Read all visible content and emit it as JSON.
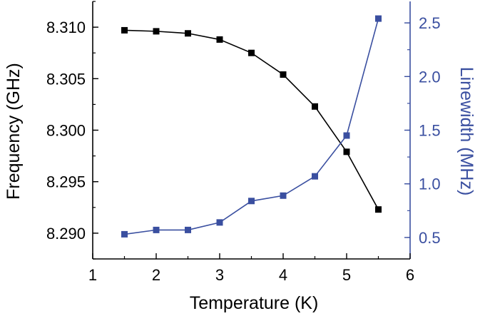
{
  "chart_data": {
    "type": "line",
    "xlabel": "Temperature (K)",
    "ylabel_left": "Frequency (GHz)",
    "ylabel_right": "Linewidth (MHz)",
    "xlim": [
      1,
      6
    ],
    "ylim_left": [
      8.2875,
      8.3125
    ],
    "ylim_right": [
      0.3,
      2.7
    ],
    "x_ticks": [
      "1",
      "2",
      "3",
      "4",
      "5",
      "6"
    ],
    "y_left_ticks": [
      "8.290",
      "8.295",
      "8.300",
      "8.305",
      "8.310"
    ],
    "y_right_ticks": [
      "0.5",
      "1.0",
      "1.5",
      "2.0",
      "2.5"
    ],
    "grid": false,
    "series": [
      {
        "axis": "left",
        "color": "#000000",
        "marker": "square",
        "x": [
          1.5,
          2.0,
          2.5,
          3.0,
          3.5,
          4.0,
          4.5,
          5.0,
          5.5
        ],
        "values": [
          8.3097,
          8.3096,
          8.3094,
          8.3088,
          8.3075,
          8.3054,
          8.3023,
          8.2979,
          8.2923
        ]
      },
      {
        "axis": "right",
        "color": "#3a4fa0",
        "marker": "square",
        "x": [
          1.5,
          2.0,
          2.5,
          3.0,
          3.5,
          4.0,
          4.5,
          5.0,
          5.5
        ],
        "values": [
          0.53,
          0.57,
          0.57,
          0.64,
          0.84,
          0.89,
          1.07,
          1.45,
          2.54
        ]
      }
    ],
    "colors": {
      "left_axis": "#000000",
      "right_axis": "#3a4fa0"
    }
  }
}
